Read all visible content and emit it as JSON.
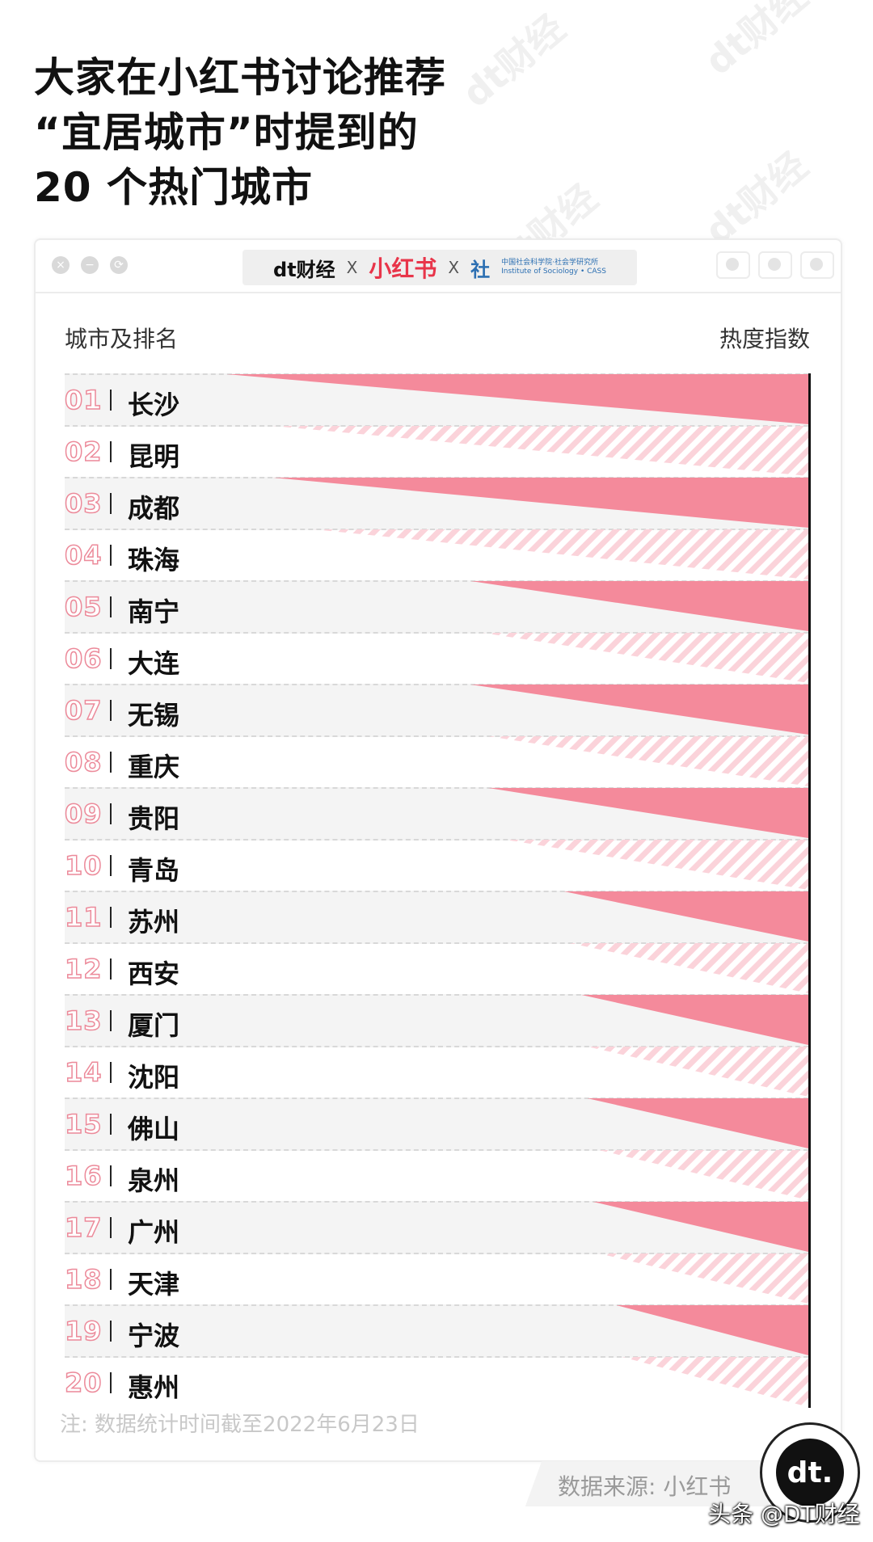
{
  "title_lines": [
    "大家在小红书讨论推荐",
    "“宜居城市”时提到的",
    "20 个热门城市"
  ],
  "brand": {
    "dt": "dt财经",
    "x": "X",
    "xhs": "小红书",
    "cass_icon": "社",
    "cass_cn": "中国社会科学院·社会学研究所",
    "cass_en": "Institute of Sociology • CASS"
  },
  "watermark": "dt财经",
  "col_left": "城市及排名",
  "col_right": "热度指数",
  "chart_data": {
    "type": "bar",
    "title": "大家在小红书讨论推荐“宜居城市”时提到的20 个热门城市",
    "xlabel": "城市及排名",
    "ylabel": "热度指数",
    "ranks": [
      "01",
      "02",
      "03",
      "04",
      "05",
      "06",
      "07",
      "08",
      "09",
      "10",
      "11",
      "12",
      "13",
      "14",
      "15",
      "16",
      "17",
      "18",
      "19",
      "20"
    ],
    "categories": [
      "长沙",
      "昆明",
      "成都",
      "珠海",
      "南宁",
      "大连",
      "无锡",
      "重庆",
      "贵阳",
      "青岛",
      "苏州",
      "西安",
      "厦门",
      "沈阳",
      "佛山",
      "泉州",
      "广州",
      "天津",
      "宁波",
      "惠州"
    ],
    "values": [
      100,
      92,
      92,
      85,
      58,
      56,
      58,
      55,
      55,
      52,
      42,
      41,
      39,
      38,
      38,
      36,
      37,
      36,
      33,
      32
    ],
    "colors": {
      "solid": "#f48a9b",
      "hatch": "#fbd3da",
      "axis": "#111111"
    },
    "grid": false,
    "legend": "none"
  },
  "note": "注: 数据统计时间截至2022年6月23日",
  "source": "数据来源: 小红书",
  "badge_text": "dt.",
  "credit": "头条 @DT财经"
}
